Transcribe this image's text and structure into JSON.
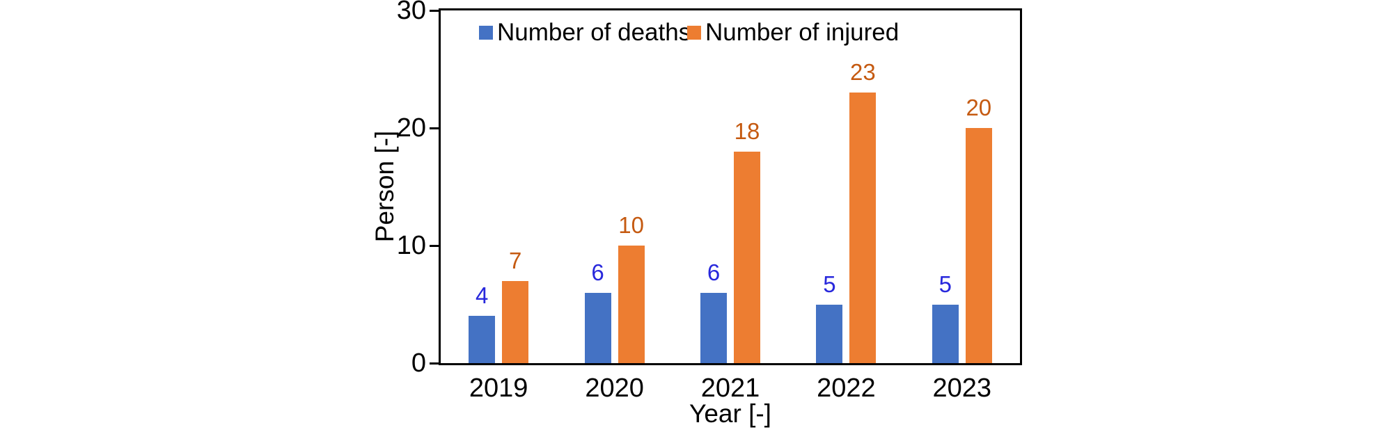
{
  "chart_data": {
    "type": "bar",
    "categories": [
      "2019",
      "2020",
      "2021",
      "2022",
      "2023"
    ],
    "series": [
      {
        "name": "Number of deaths",
        "color": "#4472C4",
        "label_color": "#2828DC",
        "values": [
          4,
          6,
          6,
          5,
          5
        ]
      },
      {
        "name": "Number of injured",
        "color": "#ED7D31",
        "label_color": "#C55A11",
        "values": [
          7,
          10,
          18,
          23,
          20
        ]
      }
    ],
    "title": "",
    "xlabel": "Year [-]",
    "ylabel": "Person [-]",
    "ylim": [
      0,
      30
    ],
    "yticks": [
      "0",
      "10",
      "20",
      "30"
    ],
    "grid": false,
    "legend_position": "top-inside",
    "data_labels": true,
    "axis_color": "#000000"
  }
}
